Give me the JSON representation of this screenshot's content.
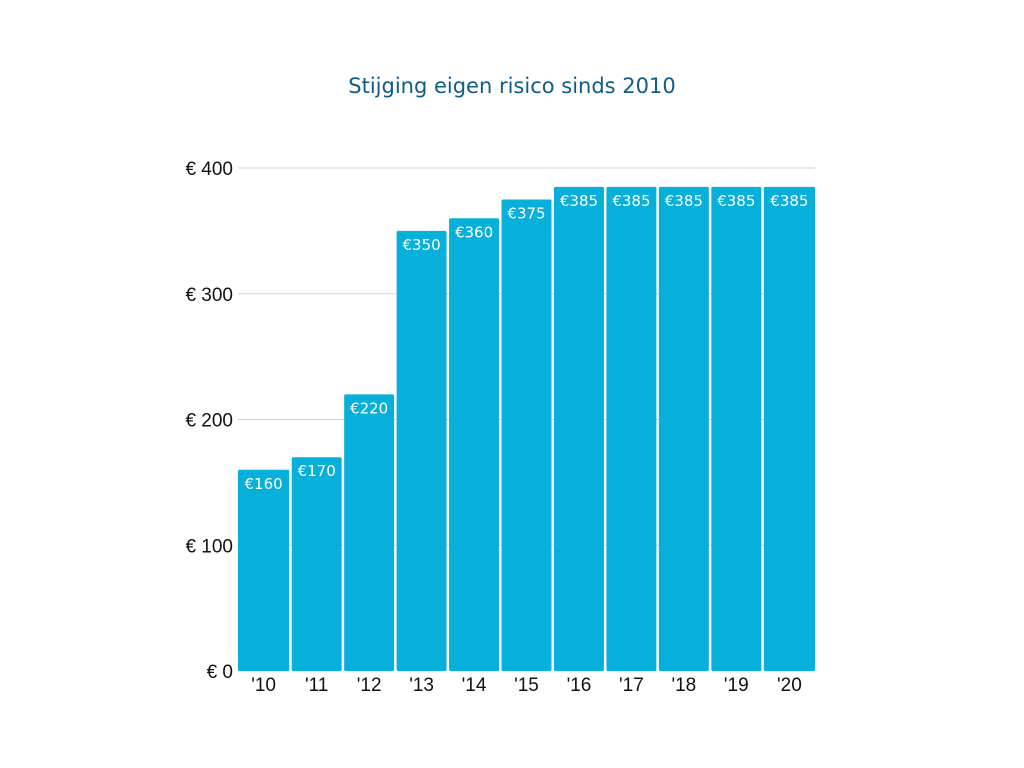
{
  "chart_data": {
    "type": "bar",
    "title": "Stijging eigen risico sinds 2010",
    "xlabel": "",
    "ylabel": "",
    "categories": [
      "'10",
      "'11",
      "'12",
      "'13",
      "'14",
      "'15",
      "'16",
      "'17",
      "'18",
      "'19",
      "'20"
    ],
    "values": [
      160,
      170,
      220,
      350,
      360,
      375,
      385,
      385,
      385,
      385,
      385
    ],
    "data_labels": [
      "€160",
      "€170",
      "€220",
      "€350",
      "€360",
      "€375",
      "€385",
      "€385",
      "€385",
      "€385",
      "€385"
    ],
    "ylim": [
      0,
      400
    ],
    "yticks": [
      0,
      100,
      200,
      300,
      400
    ],
    "ytick_labels": [
      "€ 0",
      "€ 100",
      "€ 200",
      "€ 300",
      "€ 400"
    ],
    "grid": true,
    "legend": "none"
  },
  "colors": {
    "bar": "#06b0da",
    "gridline": "#d4d4d4",
    "title": "#0f5b8a",
    "data_label": "#ffffff"
  }
}
